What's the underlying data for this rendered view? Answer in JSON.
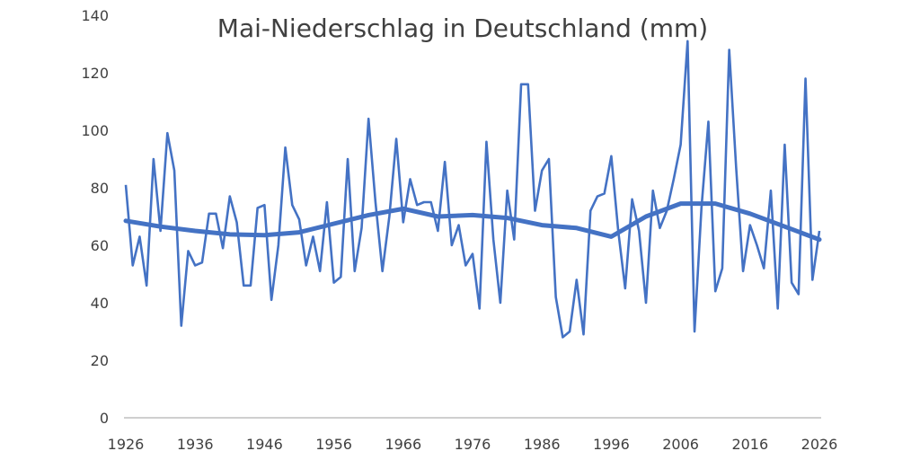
{
  "chart_data": {
    "type": "line",
    "title": "Mai-Niederschlag in Deutschland (mm)",
    "xlabel": "",
    "ylabel": "",
    "xlim": [
      1926,
      2026
    ],
    "ylim": [
      0,
      140
    ],
    "y_ticks": [
      "0",
      "20",
      "40",
      "60",
      "80",
      "100",
      "120",
      "140"
    ],
    "x_ticks": [
      "1926",
      "1936",
      "1946",
      "1956",
      "1966",
      "1976",
      "1986",
      "1996",
      "2006",
      "2016",
      "2026"
    ],
    "grid": false,
    "legend": "none",
    "colors": {
      "series": "#4472c4",
      "text": "#404040",
      "axis": "#bfbfbf"
    },
    "series": [
      {
        "values": [
          [
            1926,
            81
          ],
          [
            1927,
            53
          ],
          [
            1928,
            63
          ],
          [
            1929,
            46
          ],
          [
            1930,
            90
          ],
          [
            1931,
            65
          ],
          [
            1932,
            99
          ],
          [
            1933,
            86
          ],
          [
            1934,
            32
          ],
          [
            1935,
            58
          ],
          [
            1936,
            53
          ],
          [
            1937,
            54
          ],
          [
            1938,
            71
          ],
          [
            1939,
            71
          ],
          [
            1940,
            59
          ],
          [
            1941,
            77
          ],
          [
            1942,
            68
          ],
          [
            1943,
            46
          ],
          [
            1944,
            46
          ],
          [
            1945,
            73
          ],
          [
            1946,
            74
          ],
          [
            1947,
            41
          ],
          [
            1948,
            60
          ],
          [
            1949,
            94
          ],
          [
            1950,
            74
          ],
          [
            1951,
            69
          ],
          [
            1952,
            53
          ],
          [
            1953,
            63
          ],
          [
            1954,
            51
          ],
          [
            1955,
            75
          ],
          [
            1956,
            47
          ],
          [
            1957,
            49
          ],
          [
            1958,
            90
          ],
          [
            1959,
            51
          ],
          [
            1960,
            66
          ],
          [
            1961,
            104
          ],
          [
            1962,
            75
          ],
          [
            1963,
            51
          ],
          [
            1964,
            70
          ],
          [
            1965,
            97
          ],
          [
            1966,
            68
          ],
          [
            1967,
            83
          ],
          [
            1968,
            74
          ],
          [
            1969,
            75
          ],
          [
            1970,
            75
          ],
          [
            1971,
            65
          ],
          [
            1972,
            89
          ],
          [
            1973,
            60
          ],
          [
            1974,
            67
          ],
          [
            1975,
            53
          ],
          [
            1976,
            57
          ],
          [
            1977,
            38
          ],
          [
            1978,
            96
          ],
          [
            1979,
            62
          ],
          [
            1980,
            40
          ],
          [
            1981,
            79
          ],
          [
            1982,
            62
          ],
          [
            1983,
            116
          ],
          [
            1984,
            116
          ],
          [
            1985,
            72
          ],
          [
            1986,
            86
          ],
          [
            1987,
            90
          ],
          [
            1988,
            42
          ],
          [
            1989,
            28
          ],
          [
            1990,
            30
          ],
          [
            1991,
            48
          ],
          [
            1992,
            29
          ],
          [
            1993,
            72
          ],
          [
            1994,
            77
          ],
          [
            1995,
            78
          ],
          [
            1996,
            91
          ],
          [
            1997,
            65
          ],
          [
            1998,
            45
          ],
          [
            1999,
            76
          ],
          [
            2000,
            65
          ],
          [
            2001,
            40
          ],
          [
            2002,
            79
          ],
          [
            2003,
            66
          ],
          [
            2004,
            72
          ],
          [
            2005,
            83
          ],
          [
            2006,
            95
          ],
          [
            2007,
            131
          ],
          [
            2008,
            30
          ],
          [
            2009,
            73
          ],
          [
            2010,
            103
          ],
          [
            2011,
            44
          ],
          [
            2012,
            52
          ],
          [
            2013,
            128
          ],
          [
            2014,
            87
          ],
          [
            2015,
            51
          ],
          [
            2016,
            67
          ],
          [
            2017,
            60
          ],
          [
            2018,
            52
          ],
          [
            2019,
            79
          ],
          [
            2020,
            38
          ],
          [
            2021,
            95
          ],
          [
            2022,
            47
          ],
          [
            2023,
            43
          ],
          [
            2024,
            118
          ],
          [
            2025,
            48
          ],
          [
            2026,
            65
          ]
        ]
      },
      {
        "values": [
          [
            1926,
            68.5
          ],
          [
            1931,
            66.5
          ],
          [
            1936,
            65
          ],
          [
            1941,
            63.8
          ],
          [
            1946,
            63.5
          ],
          [
            1951,
            64.5
          ],
          [
            1956,
            67.5
          ],
          [
            1961,
            70.5
          ],
          [
            1966,
            72.7
          ],
          [
            1971,
            70
          ],
          [
            1976,
            70.5
          ],
          [
            1981,
            69.5
          ],
          [
            1986,
            67
          ],
          [
            1991,
            66
          ],
          [
            1996,
            63
          ],
          [
            2001,
            70
          ],
          [
            2006,
            74.5
          ],
          [
            2011,
            74.5
          ],
          [
            2016,
            71
          ],
          [
            2021,
            66.5
          ],
          [
            2026,
            62
          ]
        ]
      }
    ]
  }
}
